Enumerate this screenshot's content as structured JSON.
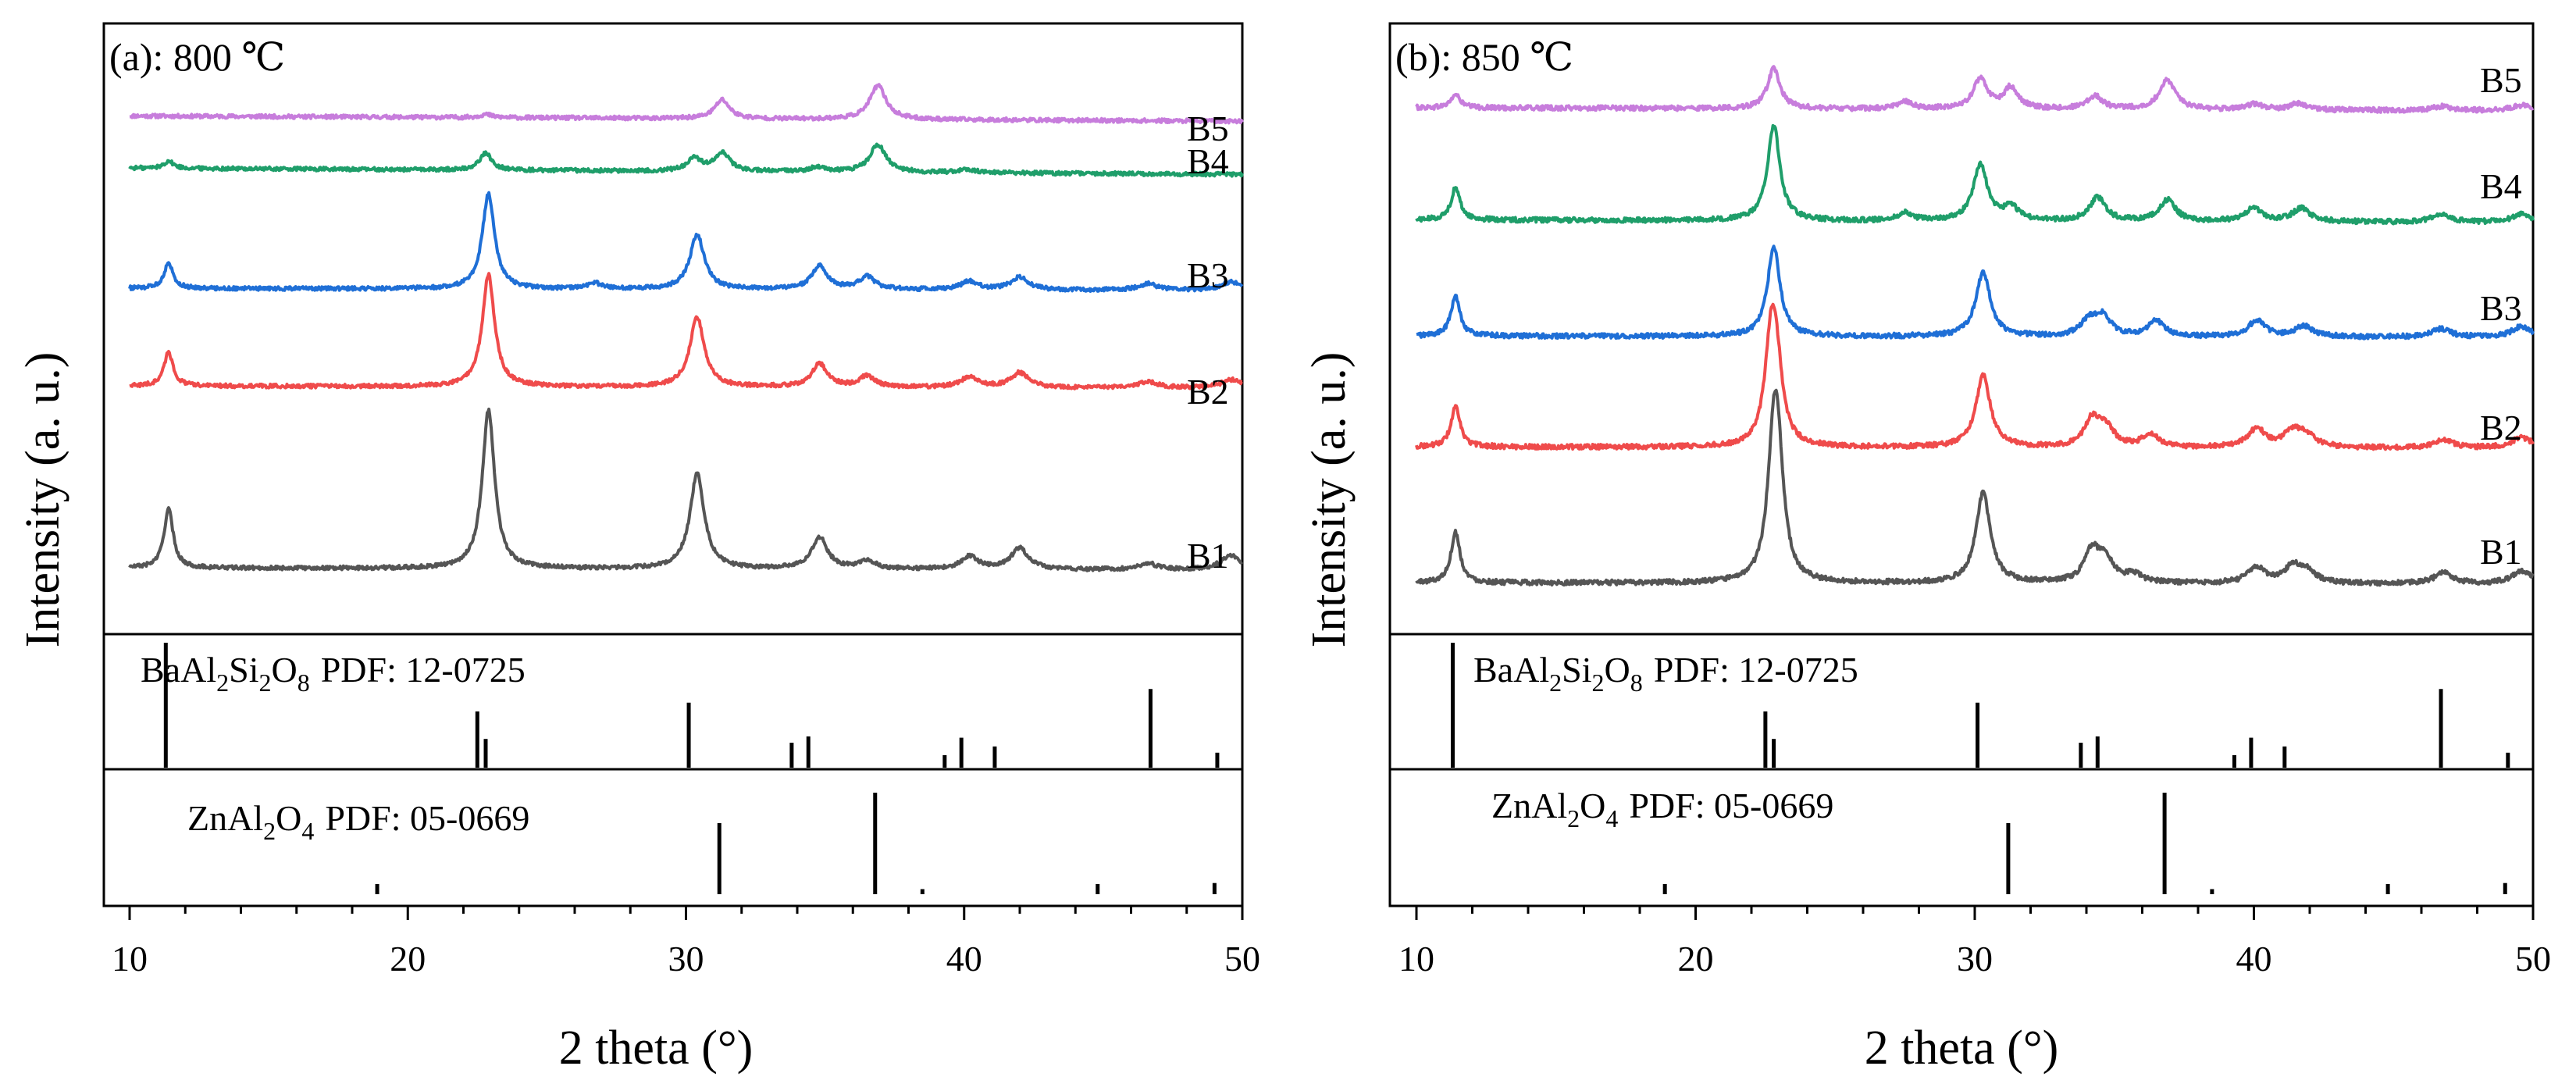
{
  "chart_data": [
    {
      "type": "line",
      "title": "(a): 800 ℃",
      "xlabel": "2 theta (°)",
      "ylabel": "Intensity (a. u.)",
      "xlim": [
        10,
        50
      ],
      "xticks": [
        "10",
        "20",
        "30",
        "40",
        "50"
      ],
      "grid": false,
      "series": [
        {
          "name": "B5",
          "color": "#c77ddc",
          "baseline": 0.18,
          "slope": 0.25,
          "peaks": [
            [
              22.8,
              0.15
            ],
            [
              31.3,
              0.9
            ],
            [
              36.9,
              1.6
            ]
          ]
        },
        {
          "name": "B4",
          "color": "#1f9e6a",
          "baseline": 0.1,
          "slope": 0.3,
          "peaks": [
            [
              11.4,
              0.35
            ],
            [
              22.8,
              0.8
            ],
            [
              30.3,
              0.6
            ],
            [
              31.3,
              0.9
            ],
            [
              34.7,
              0.2
            ],
            [
              36.9,
              1.3
            ],
            [
              40.1,
              0.15
            ]
          ]
        },
        {
          "name": "B3",
          "color": "#1f6fd6",
          "baseline": 0.0,
          "slope": 0.1,
          "peaks": [
            [
              11.4,
              1.2
            ],
            [
              22.9,
              4.5
            ],
            [
              26.7,
              0.3
            ],
            [
              30.4,
              2.6
            ],
            [
              34.8,
              1.1
            ],
            [
              36.5,
              0.6
            ],
            [
              40.2,
              0.4
            ],
            [
              42.0,
              0.6
            ],
            [
              46.6,
              0.3
            ],
            [
              49.6,
              0.4
            ]
          ]
        },
        {
          "name": "B2",
          "color": "#ef4b4b",
          "baseline": 0.0,
          "slope": 0.1,
          "peaks": [
            [
              11.4,
              1.6
            ],
            [
              22.9,
              5.3
            ],
            [
              30.4,
              3.3
            ],
            [
              34.8,
              1.1
            ],
            [
              36.5,
              0.5
            ],
            [
              40.2,
              0.5
            ],
            [
              42.0,
              0.7
            ],
            [
              46.6,
              0.3
            ],
            [
              49.6,
              0.4
            ]
          ]
        },
        {
          "name": "B1",
          "color": "#555555",
          "baseline": 0.0,
          "slope": 0.1,
          "peaks": [
            [
              11.4,
              2.8
            ],
            [
              22.9,
              7.5
            ],
            [
              30.4,
              4.5
            ],
            [
              34.8,
              1.5
            ],
            [
              36.5,
              0.4
            ],
            [
              40.2,
              0.6
            ],
            [
              42.0,
              1.0
            ],
            [
              46.6,
              0.3
            ],
            [
              49.6,
              0.7
            ]
          ]
        }
      ],
      "reference_patterns": [
        {
          "formula": "BaAl2Si2O8",
          "pdf": "PDF: 12-0725",
          "lines": [
            [
              11.3,
              1.0
            ],
            [
              22.5,
              0.45
            ],
            [
              22.8,
              0.23
            ],
            [
              30.1,
              0.52
            ],
            [
              33.8,
              0.2
            ],
            [
              34.4,
              0.25
            ],
            [
              39.3,
              0.1
            ],
            [
              39.9,
              0.24
            ],
            [
              41.1,
              0.17
            ],
            [
              46.7,
              0.63
            ],
            [
              49.1,
              0.12
            ]
          ]
        },
        {
          "formula": "ZnAl2O4",
          "pdf": "PDF: 05-0669",
          "lines": [
            [
              18.9,
              0.1
            ],
            [
              31.2,
              0.7
            ],
            [
              36.8,
              1.0
            ],
            [
              38.5,
              0.05
            ],
            [
              44.8,
              0.1
            ],
            [
              49.0,
              0.11
            ]
          ]
        }
      ]
    },
    {
      "type": "line",
      "title": "(b): 850 ℃",
      "xlabel": "2 theta (°)",
      "ylabel": "Intensity (a. u.)",
      "xlim": [
        10,
        50
      ],
      "xticks": [
        "10",
        "20",
        "30",
        "40",
        "50"
      ],
      "grid": false,
      "series": [
        {
          "name": "B5",
          "color": "#c77ddc",
          "baseline": 0.0,
          "slope": 0.12,
          "peaks": [
            [
              11.4,
              0.5
            ],
            [
              22.8,
              1.5
            ],
            [
              27.5,
              0.3
            ],
            [
              30.2,
              1.1
            ],
            [
              31.3,
              0.8
            ],
            [
              34.3,
              0.5
            ],
            [
              36.9,
              1.1
            ],
            [
              40.0,
              0.2
            ],
            [
              41.6,
              0.25
            ],
            [
              46.7,
              0.15
            ],
            [
              49.6,
              0.2
            ]
          ]
        },
        {
          "name": "B4",
          "color": "#1f9e6a",
          "baseline": 0.0,
          "slope": 0.1,
          "peaks": [
            [
              11.4,
              1.2
            ],
            [
              22.8,
              3.6
            ],
            [
              27.5,
              0.3
            ],
            [
              30.2,
              2.1
            ],
            [
              31.3,
              0.5
            ],
            [
              34.4,
              0.9
            ],
            [
              36.9,
              0.8
            ],
            [
              40.0,
              0.5
            ],
            [
              41.7,
              0.5
            ],
            [
              46.7,
              0.3
            ],
            [
              49.6,
              0.3
            ]
          ]
        },
        {
          "name": "B3",
          "color": "#1f6fd6",
          "baseline": 0.0,
          "slope": 0.05,
          "peaks": [
            [
              11.4,
              1.5
            ],
            [
              22.8,
              3.4
            ],
            [
              30.3,
              2.4
            ],
            [
              34.1,
              0.6
            ],
            [
              34.6,
              0.7
            ],
            [
              36.5,
              0.6
            ],
            [
              40.1,
              0.6
            ],
            [
              41.8,
              0.4
            ],
            [
              46.7,
              0.3
            ],
            [
              49.6,
              0.4
            ]
          ]
        },
        {
          "name": "B2",
          "color": "#ef4b4b",
          "baseline": 0.0,
          "slope": 0.05,
          "peaks": [
            [
              11.4,
              1.5
            ],
            [
              22.7,
              3.6
            ],
            [
              22.9,
              2.4
            ],
            [
              30.3,
              2.7
            ],
            [
              34.2,
              1.0
            ],
            [
              34.7,
              0.7
            ],
            [
              36.3,
              0.5
            ],
            [
              40.1,
              0.7
            ],
            [
              41.4,
              0.6
            ],
            [
              41.9,
              0.4
            ],
            [
              46.8,
              0.3
            ],
            [
              49.6,
              0.4
            ]
          ]
        },
        {
          "name": "B1",
          "color": "#555555",
          "baseline": 0.0,
          "slope": 0.05,
          "peaks": [
            [
              11.4,
              1.9
            ],
            [
              22.8,
              4.4
            ],
            [
              22.95,
              3.4
            ],
            [
              30.3,
              3.4
            ],
            [
              34.2,
              1.2
            ],
            [
              34.7,
              0.8
            ],
            [
              35.7,
              0.3
            ],
            [
              40.1,
              0.6
            ],
            [
              41.4,
              0.6
            ],
            [
              41.9,
              0.4
            ],
            [
              46.8,
              0.4
            ],
            [
              49.6,
              0.5
            ]
          ]
        }
      ],
      "reference_patterns": [
        {
          "formula": "BaAl2Si2O8",
          "pdf": "PDF: 12-0725",
          "lines": [
            [
              11.3,
              1.0
            ],
            [
              22.5,
              0.45
            ],
            [
              22.8,
              0.23
            ],
            [
              30.1,
              0.52
            ],
            [
              33.8,
              0.2
            ],
            [
              34.4,
              0.25
            ],
            [
              39.3,
              0.1
            ],
            [
              39.9,
              0.24
            ],
            [
              41.1,
              0.17
            ],
            [
              46.7,
              0.63
            ],
            [
              49.1,
              0.12
            ]
          ]
        },
        {
          "formula": "ZnAl2O4",
          "pdf": "PDF: 05-0669",
          "lines": [
            [
              18.9,
              0.1
            ],
            [
              31.2,
              0.7
            ],
            [
              36.8,
              1.0
            ],
            [
              38.5,
              0.05
            ],
            [
              44.8,
              0.1
            ],
            [
              49.0,
              0.11
            ]
          ]
        }
      ]
    }
  ]
}
